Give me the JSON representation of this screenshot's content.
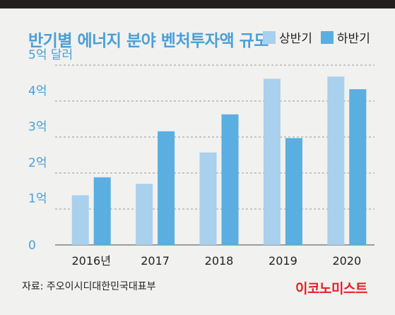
{
  "title": "반기별 에너지 분야 벤처투자액 규모",
  "legend": [
    {
      "label": "상반기",
      "color": "#a9d0ec"
    },
    {
      "label": "하반기",
      "color": "#5aaee0"
    }
  ],
  "chart_data": {
    "type": "bar",
    "title": "반기별 에너지 분야 벤처투자액 규모",
    "categories": [
      "2016년",
      "2017",
      "2018",
      "2019",
      "2020"
    ],
    "series": [
      {
        "name": "상반기",
        "color": "#a9d0ec",
        "values": [
          1.38,
          1.7,
          2.57,
          4.62,
          4.68
        ]
      },
      {
        "name": "하반기",
        "color": "#5aaee0",
        "values": [
          1.88,
          3.16,
          3.63,
          2.97,
          4.33
        ]
      }
    ],
    "yticks": [
      "0",
      "1억",
      "2억",
      "3억",
      "4억",
      "5억 달러"
    ],
    "ylim": [
      0,
      5
    ],
    "grid": true,
    "legend_position": "top-right"
  },
  "source": "자료: 주오이시디대한민국대표부",
  "brand": "이코노미스트"
}
